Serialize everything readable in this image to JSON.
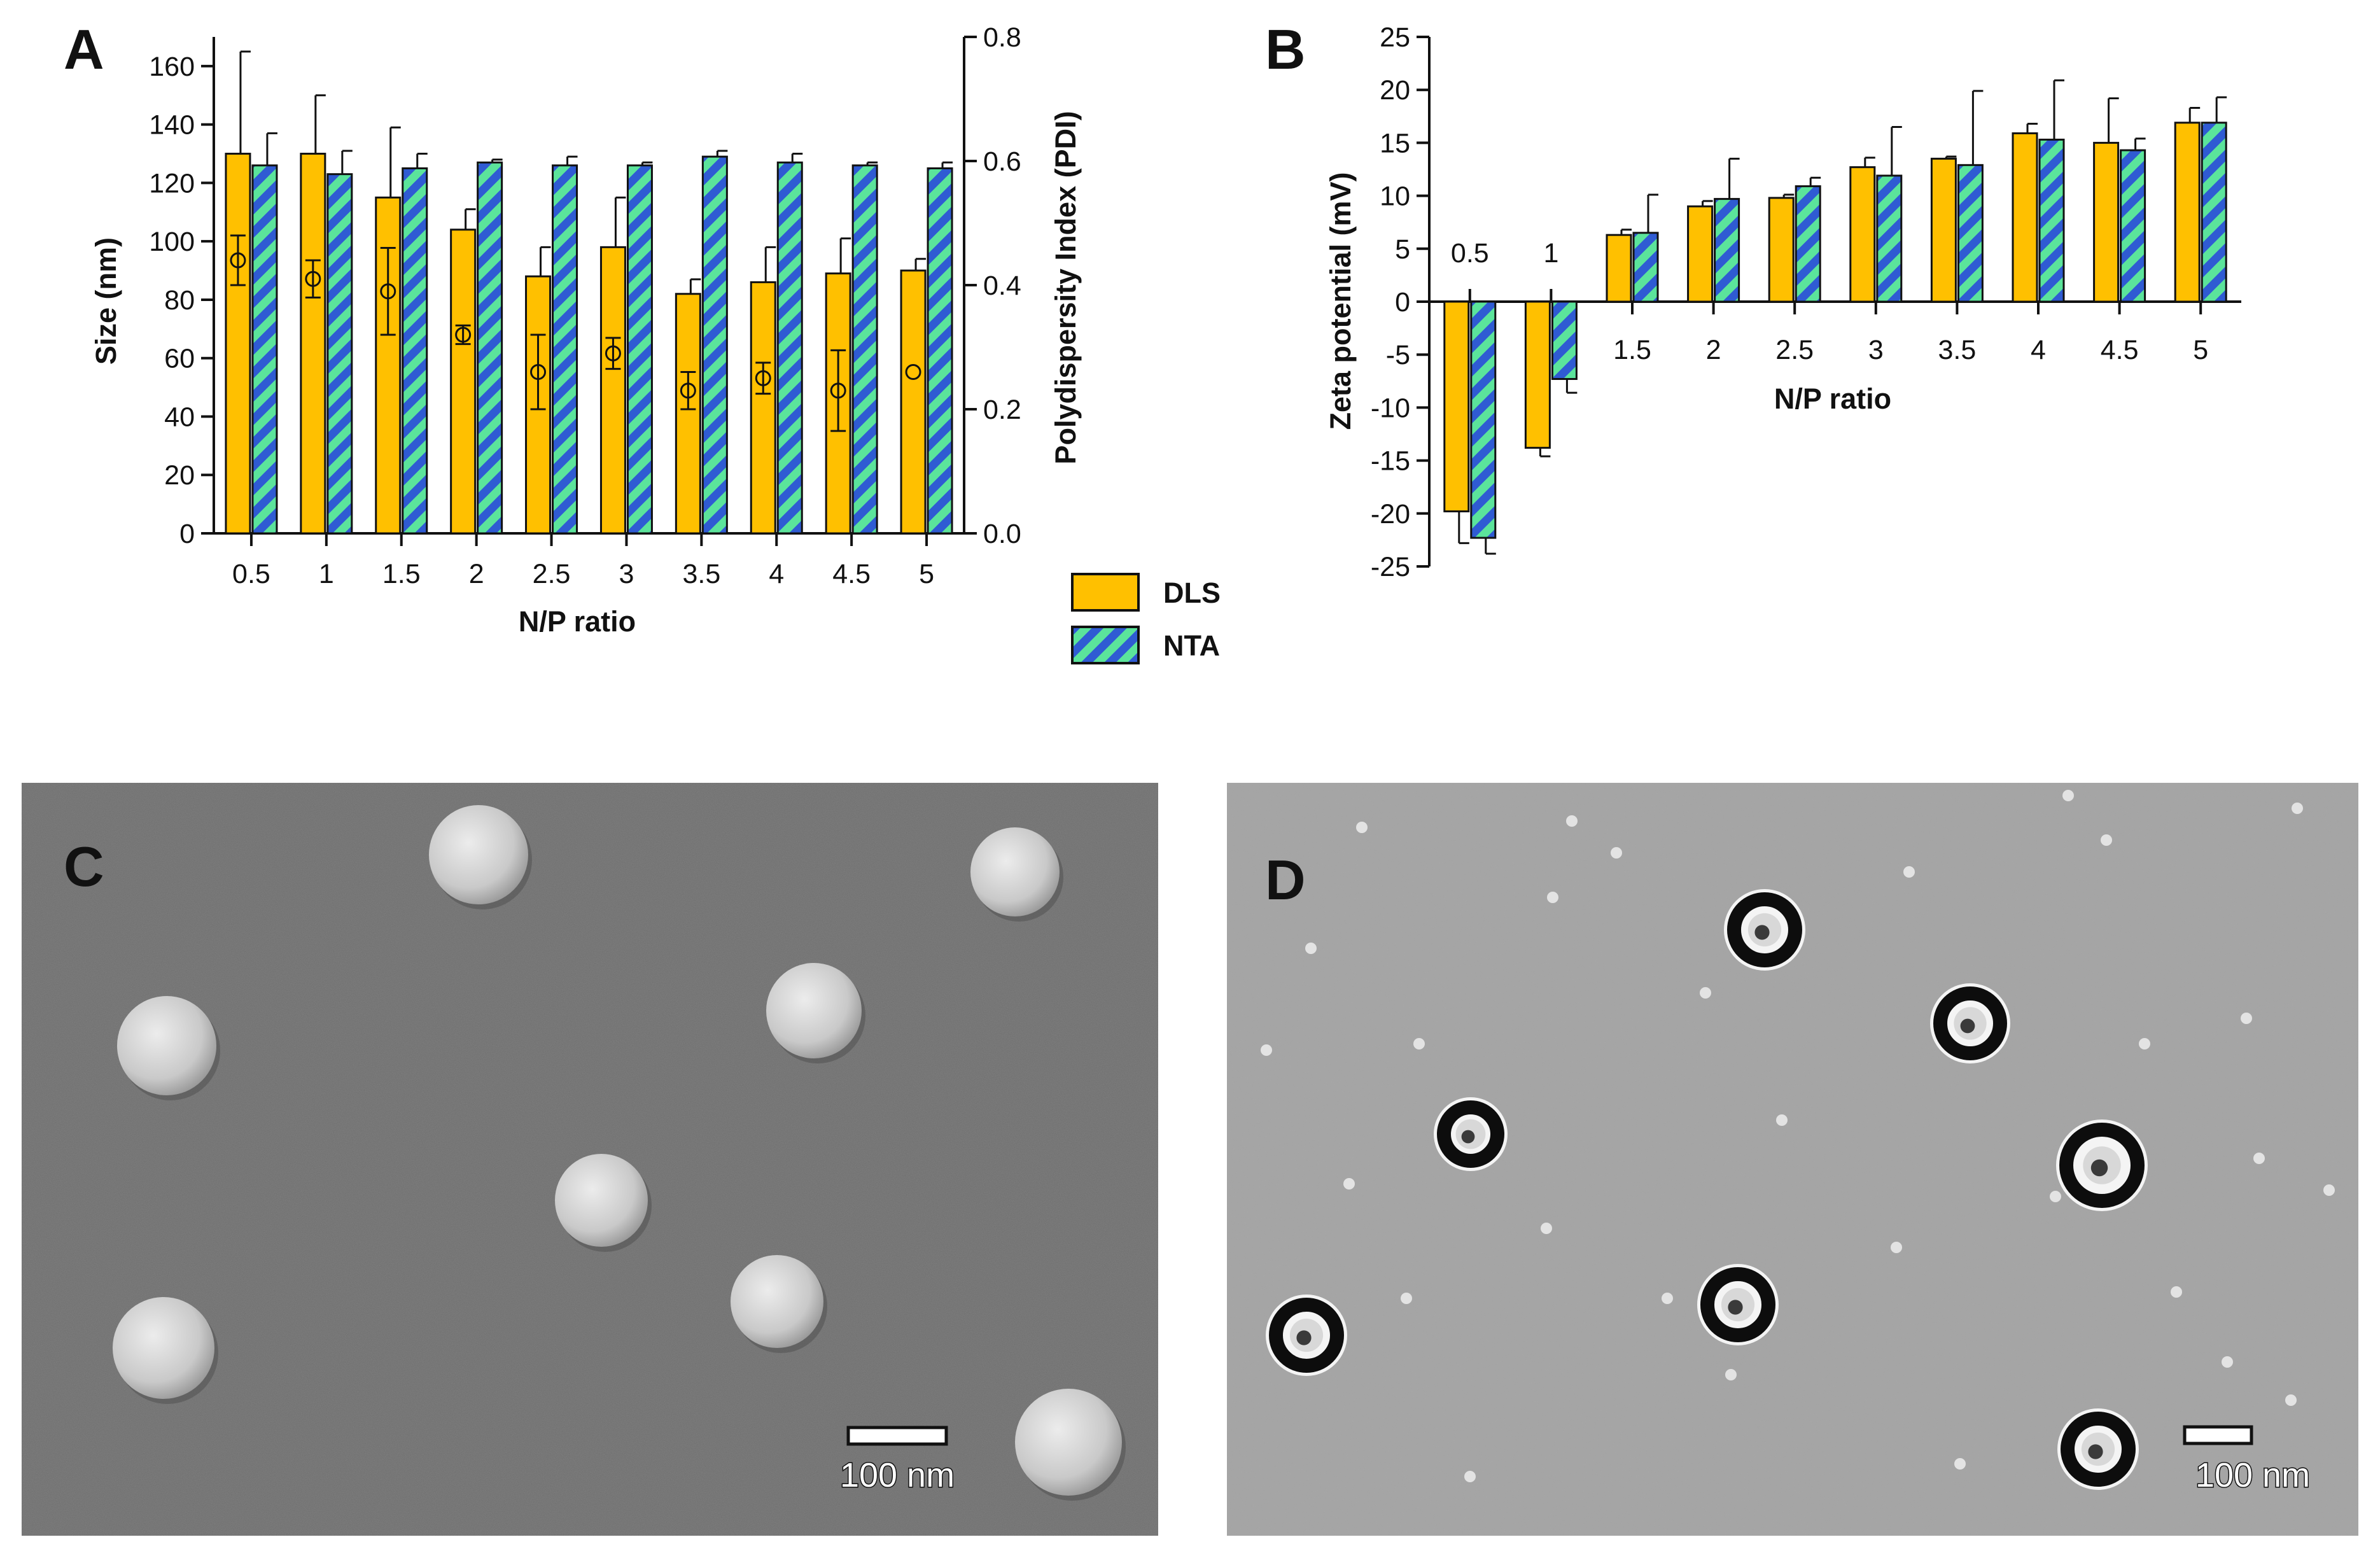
{
  "colors": {
    "dls": "#FFC000",
    "nta_a": "#5BE49B",
    "nta_b": "#2F5BD3",
    "axis": "#111111"
  },
  "legend": {
    "dls": "DLS",
    "nta": "NTA"
  },
  "chart_data": [
    {
      "panel": "A",
      "type": "bar",
      "categories": [
        "0.5",
        "1",
        "1.5",
        "2",
        "2.5",
        "3",
        "3.5",
        "4",
        "4.5",
        "5"
      ],
      "xlabel": "N/P ratio",
      "ylabel": "Size (nm)",
      "y2label": "Polydispersity Index (PDI)",
      "ylim": [
        0,
        170
      ],
      "y2lim": [
        0,
        0.8
      ],
      "yticks": [
        "0",
        "20",
        "40",
        "60",
        "80",
        "100",
        "120",
        "140",
        "160"
      ],
      "y2ticks": [
        "0.0",
        "0.2",
        "0.4",
        "0.6",
        "0.8"
      ],
      "series": [
        {
          "name": "DLS",
          "values": [
            130,
            130,
            115,
            104,
            88,
            98,
            82,
            86,
            89,
            90
          ],
          "err": [
            35,
            20,
            24,
            7,
            10,
            17,
            5,
            12,
            12,
            4
          ]
        },
        {
          "name": "NTA",
          "values": [
            126,
            123,
            125,
            127,
            126,
            126,
            129,
            127,
            126,
            125
          ],
          "err": [
            11,
            8,
            5,
            1,
            3,
            1,
            2,
            3,
            1,
            2
          ]
        }
      ],
      "pdi": {
        "values": [
          0.44,
          0.41,
          0.39,
          0.32,
          0.26,
          0.29,
          0.23,
          0.25,
          0.23,
          0.26
        ],
        "err": [
          0.04,
          0.03,
          0.07,
          0.015,
          0.06,
          0.025,
          0.03,
          0.025,
          0.065,
          0
        ]
      }
    },
    {
      "panel": "B",
      "type": "bar",
      "categories": [
        "0.5",
        "1",
        "1.5",
        "2",
        "2.5",
        "3",
        "3.5",
        "4",
        "4.5",
        "5"
      ],
      "xlabel": "N/P ratio",
      "ylabel": "Zeta potential (mV)",
      "ylim": [
        -25,
        25
      ],
      "yticks": [
        "25",
        "20",
        "15",
        "10",
        "5",
        "0",
        "-5",
        "-10",
        "-15",
        "-20",
        "-25"
      ],
      "series": [
        {
          "name": "DLS",
          "values": [
            -19.8,
            -13.8,
            6.3,
            9.0,
            9.8,
            12.7,
            13.5,
            15.9,
            15.0,
            16.9
          ],
          "err": [
            3,
            0.8,
            0.5,
            0.5,
            0.3,
            0.9,
            0.2,
            0.9,
            4.2,
            1.4
          ]
        },
        {
          "name": "NTA",
          "values": [
            -22.3,
            -7.3,
            6.5,
            9.7,
            10.9,
            11.9,
            12.9,
            15.3,
            14.3,
            16.9
          ],
          "err": [
            1.5,
            1.3,
            3.6,
            3.8,
            0.8,
            4.6,
            7.0,
            5.6,
            1.1,
            2.4
          ]
        }
      ]
    }
  ],
  "panels": {
    "a_label": "A",
    "b_label": "B",
    "c_label": "C",
    "d_label": "D",
    "c_scale": "100 nm",
    "d_scale": "100 nm"
  }
}
